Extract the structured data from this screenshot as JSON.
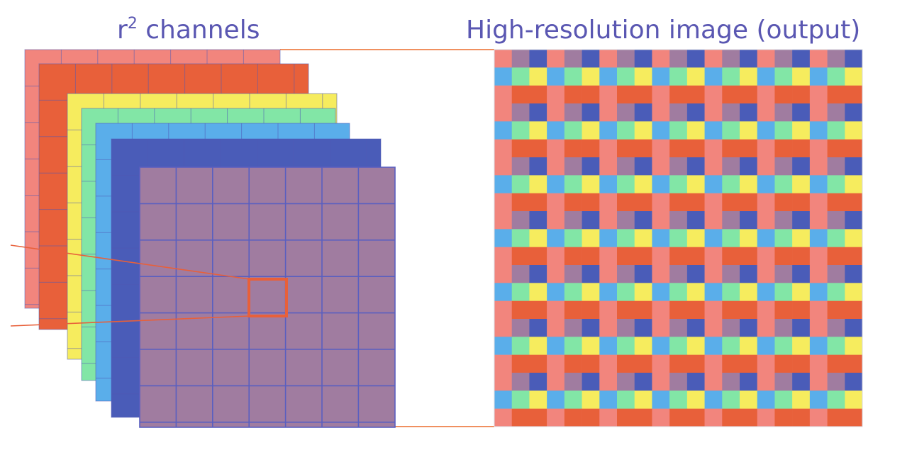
{
  "labels": {
    "left_base": "r",
    "left_exponent": "2",
    "left_rest": " channels",
    "right": "High-resolution image (output)"
  },
  "channels": [
    {
      "name": "channel-1",
      "color": "#f2857d"
    },
    {
      "name": "channel-2",
      "color": "#e8603a"
    },
    {
      "name": "channel-3",
      "color": "#f6ec5e"
    },
    {
      "name": "channel-4",
      "color": "#82e6a6"
    },
    {
      "name": "channel-5",
      "color": "#5aaeea"
    },
    {
      "name": "channel-6",
      "color": "#4a5cb8"
    },
    {
      "name": "channel-7",
      "color": "#a07ca0"
    }
  ],
  "colors": {
    "grid_line": "#5a5fc0",
    "highlight": "#e8603a",
    "connector": "#f09060",
    "heading": "#5a57b2"
  },
  "low_res_grid_size": 7,
  "high_res_grid_size": 21
}
